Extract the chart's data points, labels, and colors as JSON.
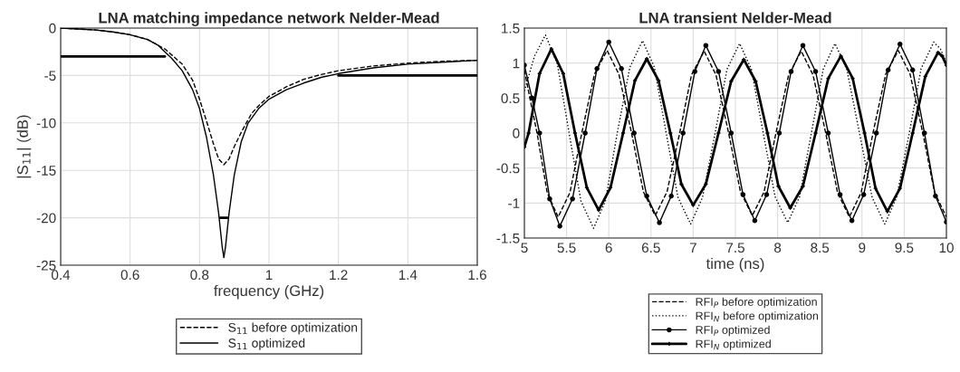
{
  "chart_data": [
    {
      "type": "line",
      "title": "LNA matching impedance network Nelder-Mead",
      "xlabel": "frequency (GHz)",
      "ylabel": "|S$_{11}$| (dB)",
      "xlim": [
        0.4,
        1.6
      ],
      "xticks": [
        0.4,
        0.6,
        0.8,
        1,
        1.2,
        1.4,
        1.6
      ],
      "ylim": [
        -25,
        0
      ],
      "yticks": [
        -25,
        -20,
        -15,
        -10,
        -5,
        0
      ],
      "grid": true,
      "legend": "bottom",
      "series": [
        {
          "name": "S$_{11}$ before optimization",
          "color": "#000000",
          "line_style": "dashed",
          "x": [
            0.4,
            0.45,
            0.5,
            0.55,
            0.6,
            0.65,
            0.7,
            0.75,
            0.78,
            0.8,
            0.82,
            0.84,
            0.855,
            0.87,
            0.885,
            0.9,
            0.92,
            0.95,
            0.97,
            1.0,
            1.05,
            1.1,
            1.15,
            1.2,
            1.3,
            1.4,
            1.5,
            1.6
          ],
          "values": [
            0,
            -0.1,
            -0.2,
            -0.4,
            -0.7,
            -1.2,
            -2.2,
            -3.8,
            -5.5,
            -7.5,
            -9.8,
            -12.2,
            -13.8,
            -14.4,
            -13.8,
            -12.5,
            -11,
            -9,
            -8.2,
            -7.2,
            -6.2,
            -5.4,
            -4.9,
            -4.5,
            -4.0,
            -3.7,
            -3.5,
            -3.4
          ]
        },
        {
          "name": "S$_{11}$ optimized",
          "color": "#000000",
          "line_style": "solid",
          "x": [
            0.4,
            0.45,
            0.5,
            0.55,
            0.6,
            0.65,
            0.68,
            0.7,
            0.72,
            0.75,
            0.78,
            0.8,
            0.82,
            0.84,
            0.855,
            0.865,
            0.87,
            0.875,
            0.885,
            0.9,
            0.92,
            0.94,
            0.97,
            1.0,
            1.05,
            1.1,
            1.15,
            1.2,
            1.3,
            1.4,
            1.5,
            1.6
          ],
          "values": [
            0,
            -0.1,
            -0.2,
            -0.4,
            -0.7,
            -1.2,
            -1.8,
            -2.5,
            -3.2,
            -4.5,
            -6.5,
            -8.5,
            -11.5,
            -15.5,
            -19.5,
            -23,
            -24.2,
            -23,
            -19.5,
            -15.5,
            -12,
            -10,
            -8.5,
            -7.5,
            -6.5,
            -5.8,
            -5.2,
            -4.8,
            -4.2,
            -3.8,
            -3.6,
            -3.4
          ]
        },
        {
          "color": "#000000",
          "line_style": "solid",
          "x": [
            0.4,
            0.7
          ],
          "values": [
            -3,
            -3
          ]
        },
        {
          "color": "#000000",
          "line_style": "solid",
          "x": [
            1.2,
            1.6
          ],
          "values": [
            -5,
            -5
          ]
        },
        {
          "color": "#000000",
          "line_style": "solid",
          "x": [
            0.86,
            0.88
          ],
          "values": [
            -20,
            -20
          ]
        }
      ]
    },
    {
      "type": "line",
      "title": "LNA transient Nelder-Mead",
      "xlabel": "time (ns)",
      "xlim": [
        5,
        10
      ],
      "xticks": [
        5,
        5.5,
        6,
        6.5,
        7,
        7.5,
        8,
        8.5,
        9,
        9.5,
        10
      ],
      "ylim": [
        -1.5,
        1.5
      ],
      "yticks": [
        -1.5,
        -1,
        -0.5,
        0,
        0.5,
        1,
        1.5
      ],
      "grid": true,
      "legend": "bottom",
      "series": [
        {
          "name": "RFI$_{P}$ before optimization",
          "color": "#000000",
          "line_style": "dashed",
          "x": [
            5,
            5.07,
            5.15,
            5.27,
            5.4,
            5.54,
            5.68,
            5.83,
            5.98,
            6.12,
            6.27,
            6.41,
            6.55,
            6.69,
            6.84,
            6.98,
            7.13,
            7.27,
            7.42,
            7.56,
            7.7,
            7.84,
            7.98,
            8.13,
            8.28,
            8.42,
            8.57,
            8.71,
            8.85,
            8.99,
            9.13,
            9.28,
            9.43,
            9.57,
            9.72,
            9.86,
            10
          ],
          "values": [
            0.9,
            0.47,
            0,
            -0.85,
            -1.2,
            -0.85,
            0,
            0.84,
            1.18,
            0.84,
            0,
            -0.84,
            -1.18,
            -0.84,
            0,
            0.83,
            1.17,
            0.83,
            0,
            -0.84,
            -1.18,
            -0.84,
            0,
            0.83,
            1.17,
            0.83,
            0,
            -0.85,
            -1.2,
            -0.85,
            0,
            0.84,
            1.18,
            0.84,
            0,
            -0.85,
            -1.2
          ]
        },
        {
          "name": "RFI$_{N}$ before optimization",
          "color": "#000000",
          "line_style": "dotted",
          "x": [
            5,
            5.12,
            5.25,
            5.39,
            5.53,
            5.67,
            5.82,
            5.96,
            6.1,
            6.25,
            6.4,
            6.54,
            6.68,
            6.82,
            6.97,
            7.11,
            7.26,
            7.4,
            7.55,
            7.69,
            7.83,
            7.97,
            8.12,
            8.26,
            8.4,
            8.54,
            8.68,
            8.82,
            8.97,
            9.12,
            9.27,
            9.41,
            9.56,
            9.7,
            9.85,
            9.93,
            10
          ],
          "values": [
            0.6,
            1.1,
            1.4,
            0.99,
            0,
            -0.97,
            -1.36,
            -0.97,
            0,
            0.94,
            1.32,
            0.94,
            0,
            -0.92,
            -1.3,
            -0.92,
            0,
            0.91,
            1.28,
            0.91,
            0,
            -0.91,
            -1.28,
            -0.91,
            0,
            0.91,
            1.28,
            0.91,
            0,
            -0.92,
            -1.3,
            -0.92,
            0,
            0.92,
            1.3,
            1.2,
            1.0
          ]
        },
        {
          "name": "RFI$_{P}$ optimized",
          "color": "#000000",
          "line_style": "solid",
          "marker": "circle",
          "x": [
            5,
            5.09,
            5.18,
            5.3,
            5.42,
            5.57,
            5.72,
            5.86,
            6.0,
            6.15,
            6.3,
            6.45,
            6.6,
            6.74,
            6.88,
            7.02,
            7.15,
            7.3,
            7.45,
            7.59,
            7.73,
            7.87,
            8.02,
            8.16,
            8.3,
            8.45,
            8.6,
            8.74,
            8.88,
            9.02,
            9.17,
            9.31,
            9.45,
            9.6,
            9.74,
            9.87,
            10
          ],
          "values": [
            0.97,
            0.5,
            0,
            -0.94,
            -1.33,
            -0.94,
            0,
            0.92,
            1.3,
            0.92,
            0,
            -0.9,
            -1.28,
            -0.9,
            0,
            0.88,
            1.25,
            0.88,
            0,
            -0.88,
            -1.25,
            -0.88,
            0,
            0.88,
            1.25,
            0.88,
            0,
            -0.88,
            -1.25,
            -0.88,
            0,
            0.9,
            1.27,
            0.9,
            0,
            -0.9,
            -1.27
          ]
        },
        {
          "name": "RFI$_{N}$ optimized",
          "color": "#000000",
          "line_style": "solid",
          "marker": "cross",
          "x": [
            5,
            5.05,
            5.18,
            5.32,
            5.46,
            5.6,
            5.74,
            5.88,
            6.02,
            6.17,
            6.31,
            6.45,
            6.59,
            6.73,
            6.86,
            7.0,
            7.15,
            7.3,
            7.45,
            7.6,
            7.74,
            7.88,
            8.01,
            8.15,
            8.3,
            8.45,
            8.6,
            8.75,
            8.89,
            9.03,
            9.16,
            9.3,
            9.45,
            9.6,
            9.75,
            9.9,
            9.95,
            10
          ],
          "values": [
            -0.2,
            0,
            0.85,
            1.2,
            0.85,
            0,
            -0.78,
            -1.1,
            -0.78,
            0,
            0.75,
            1.06,
            0.75,
            0,
            -0.73,
            -1.03,
            -0.73,
            0,
            0.74,
            1.05,
            0.74,
            0,
            -0.76,
            -1.07,
            -0.76,
            0,
            0.78,
            1.1,
            0.78,
            0,
            -0.79,
            -1.12,
            -0.79,
            0,
            0.81,
            1.15,
            1.1,
            0.97
          ]
        }
      ]
    }
  ]
}
